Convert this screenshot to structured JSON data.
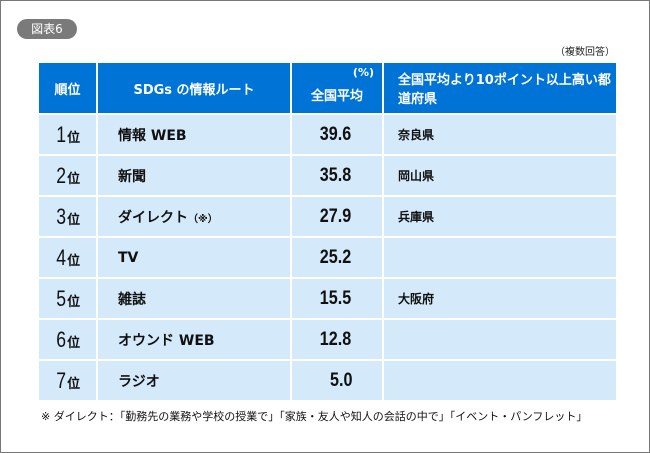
{
  "badge": "図表6",
  "note": "（複数回答）",
  "chart_data": {
    "type": "table",
    "columns": [
      "順位",
      "SDGs の情報ルート",
      "全国平均",
      "全国平均より10ポイント以上高い都道府県"
    ],
    "unit": "(%)",
    "header": {
      "rank": "順位",
      "route": "SDGs の情報ルート",
      "avg": "全国平均",
      "unit": "(%)",
      "pref": "全国平均より10ポイント以上高い都道府県"
    },
    "rows": [
      {
        "rank": "1",
        "suffix": "位",
        "route": "情報 WEB",
        "mark": "",
        "value": "39.6",
        "pref": "奈良県"
      },
      {
        "rank": "2",
        "suffix": "位",
        "route": "新聞",
        "mark": "",
        "value": "35.8",
        "pref": "岡山県"
      },
      {
        "rank": "3",
        "suffix": "位",
        "route": "ダイレクト",
        "mark": "（※）",
        "value": "27.9",
        "pref": "兵庫県"
      },
      {
        "rank": "4",
        "suffix": "位",
        "route": "TV",
        "mark": "",
        "value": "25.2",
        "pref": ""
      },
      {
        "rank": "5",
        "suffix": "位",
        "route": "雑誌",
        "mark": "",
        "value": "15.5",
        "pref": "大阪府"
      },
      {
        "rank": "6",
        "suffix": "位",
        "route": "オウンド WEB",
        "mark": "",
        "value": "12.8",
        "pref": ""
      },
      {
        "rank": "7",
        "suffix": "位",
        "route": "ラジオ",
        "mark": "",
        "value": "5.0",
        "pref": ""
      }
    ]
  },
  "footnote": "※ ダイレクト：「勤務先の業務や学校の授業で」「家族・友人や知人の会話の中で」「イベント・パンフレット」",
  "colors": {
    "header": "#0073d6",
    "row": "#d4eafb"
  }
}
